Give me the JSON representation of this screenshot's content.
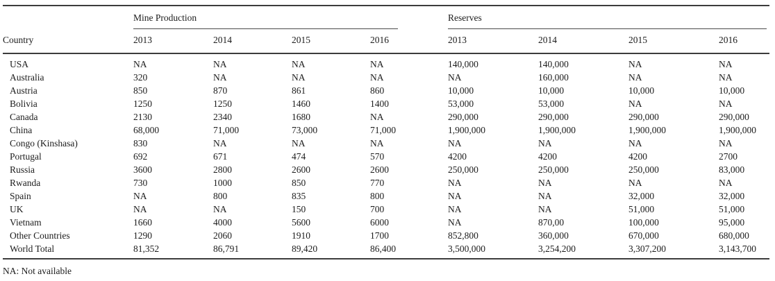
{
  "table": {
    "country_header": "Country",
    "col_groups": [
      {
        "label": "Mine Production",
        "years": [
          "2013",
          "2014",
          "2015",
          "2016"
        ]
      },
      {
        "label": "Reserves",
        "years": [
          "2013",
          "2014",
          "2015",
          "2016"
        ]
      }
    ],
    "rows": [
      {
        "country": "USA",
        "mine_production": [
          "NA",
          "NA",
          "NA",
          "NA"
        ],
        "reserves": [
          "140,000",
          "140,000",
          "NA",
          "NA"
        ]
      },
      {
        "country": "Australia",
        "mine_production": [
          "320",
          "NA",
          "NA",
          "NA"
        ],
        "reserves": [
          "NA",
          "160,000",
          "NA",
          "NA"
        ]
      },
      {
        "country": "Austria",
        "mine_production": [
          "850",
          "870",
          "861",
          "860"
        ],
        "reserves": [
          "10,000",
          "10,000",
          "10,000",
          "10,000"
        ]
      },
      {
        "country": "Bolivia",
        "mine_production": [
          "1250",
          "1250",
          "1460",
          "1400"
        ],
        "reserves": [
          "53,000",
          "53,000",
          "NA",
          "NA"
        ]
      },
      {
        "country": "Canada",
        "mine_production": [
          "2130",
          "2340",
          "1680",
          "NA"
        ],
        "reserves": [
          "290,000",
          "290,000",
          "290,000",
          "290,000"
        ]
      },
      {
        "country": "China",
        "mine_production": [
          "68,000",
          "71,000",
          "73,000",
          "71,000"
        ],
        "reserves": [
          "1,900,000",
          "1,900,000",
          "1,900,000",
          "1,900,000"
        ]
      },
      {
        "country": "Congo (Kinshasa)",
        "mine_production": [
          "830",
          "NA",
          "NA",
          "NA"
        ],
        "reserves": [
          "NA",
          "NA",
          "NA",
          "NA"
        ]
      },
      {
        "country": "Portugal",
        "mine_production": [
          "692",
          "671",
          "474",
          "570"
        ],
        "reserves": [
          "4200",
          "4200",
          "4200",
          "2700"
        ]
      },
      {
        "country": "Russia",
        "mine_production": [
          "3600",
          "2800",
          "2600",
          "2600"
        ],
        "reserves": [
          "250,000",
          "250,000",
          "250,000",
          "83,000"
        ]
      },
      {
        "country": "Rwanda",
        "mine_production": [
          "730",
          "1000",
          "850",
          "770"
        ],
        "reserves": [
          "NA",
          "NA",
          "NA",
          "NA"
        ]
      },
      {
        "country": "Spain",
        "mine_production": [
          "NA",
          "800",
          "835",
          "800"
        ],
        "reserves": [
          "NA",
          "NA",
          "32,000",
          "32,000"
        ]
      },
      {
        "country": "UK",
        "mine_production": [
          "NA",
          "NA",
          "150",
          "700"
        ],
        "reserves": [
          "NA",
          "NA",
          "51,000",
          "51,000"
        ]
      },
      {
        "country": "Vietnam",
        "mine_production": [
          "1660",
          "4000",
          "5600",
          "6000"
        ],
        "reserves": [
          "NA",
          "870,00",
          "100,000",
          "95,000"
        ]
      },
      {
        "country": "Other Countries",
        "mine_production": [
          "1290",
          "2060",
          "1910",
          "1700"
        ],
        "reserves": [
          "852,800",
          "360,000",
          "670,000",
          "680,000"
        ]
      },
      {
        "country": "World Total",
        "mine_production": [
          "81,352",
          "86,791",
          "89,420",
          "86,400"
        ],
        "reserves": [
          "3,500,000",
          "3,254,200",
          "3,307,200",
          "3,143,700"
        ]
      }
    ],
    "footnote": "NA: Not available"
  }
}
